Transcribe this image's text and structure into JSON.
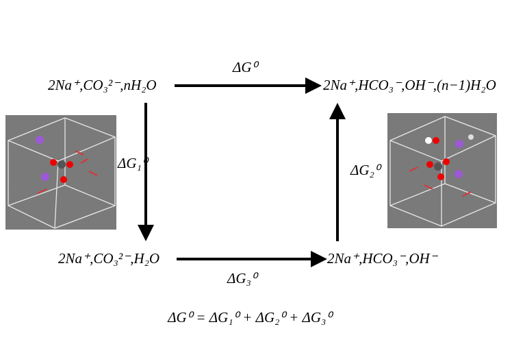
{
  "states": {
    "top_left": "2Na⁺,CO₃²⁻,nH₂O",
    "top_right": "2Na⁺,HCO₃⁻,OH⁻,(n−1)H₂O",
    "bottom_left": "2Na⁺,CO₃²⁻,H₂O",
    "bottom_right": "2Na⁺,HCO₃⁻,OH⁻"
  },
  "arrows": {
    "top": "ΔG⁰",
    "left": "ΔG₁⁰",
    "right": "ΔG₂⁰",
    "bottom": "ΔG₃⁰"
  },
  "equation": "ΔG⁰ = ΔG₁⁰ + ΔG₂⁰ + ΔG₃⁰"
}
